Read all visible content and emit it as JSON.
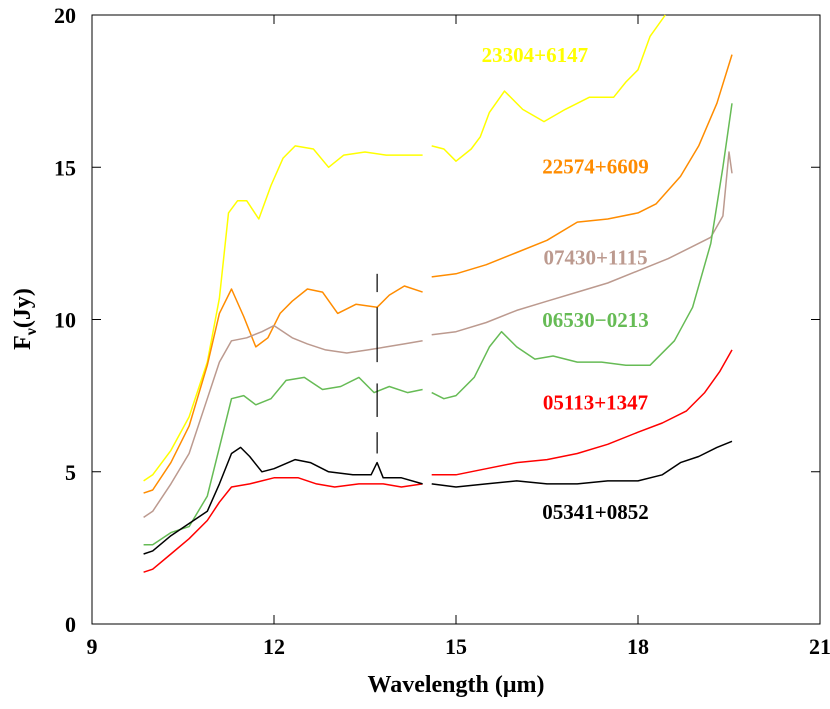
{
  "chart_data": {
    "type": "line",
    "title": "",
    "xlabel": "Wavelength (μm)",
    "ylabel": "Fν (Jy)",
    "xlim": [
      9,
      21
    ],
    "ylim": [
      0,
      20
    ],
    "xticks": [
      9,
      12,
      15,
      18,
      21
    ],
    "yticks": [
      0,
      5,
      10,
      15,
      20
    ],
    "grid": false,
    "gap": [
      14.5,
      14.6
    ],
    "marker_line": {
      "x": 13.7,
      "y_ranges": [
        [
          11.5,
          10.9
        ],
        [
          10.4,
          8.6
        ],
        [
          7.9,
          6.8
        ],
        [
          6.3,
          5.6
        ]
      ]
    },
    "series": [
      {
        "name": "23304+6147",
        "color": "#ffff00",
        "points": [
          [
            9.85,
            4.7
          ],
          [
            10.0,
            4.9
          ],
          [
            10.3,
            5.7
          ],
          [
            10.6,
            6.8
          ],
          [
            10.9,
            8.6
          ],
          [
            11.1,
            10.7
          ],
          [
            11.25,
            13.5
          ],
          [
            11.4,
            13.9
          ],
          [
            11.55,
            13.9
          ],
          [
            11.75,
            13.3
          ],
          [
            11.95,
            14.4
          ],
          [
            12.15,
            15.3
          ],
          [
            12.35,
            15.7
          ],
          [
            12.65,
            15.6
          ],
          [
            12.9,
            15.0
          ],
          [
            13.15,
            15.4
          ],
          [
            13.5,
            15.5
          ],
          [
            13.85,
            15.4
          ],
          [
            14.1,
            15.4
          ],
          [
            14.45,
            15.4
          ],
          null,
          [
            14.6,
            15.7
          ],
          [
            14.8,
            15.6
          ],
          [
            15.0,
            15.2
          ],
          [
            15.25,
            15.6
          ],
          [
            15.4,
            16.0
          ],
          [
            15.55,
            16.8
          ],
          [
            15.8,
            17.5
          ],
          [
            16.1,
            16.9
          ],
          [
            16.45,
            16.5
          ],
          [
            16.8,
            16.9
          ],
          [
            17.2,
            17.3
          ],
          [
            17.6,
            17.3
          ],
          [
            17.8,
            17.8
          ],
          [
            18.0,
            18.2
          ],
          [
            18.2,
            19.3
          ],
          [
            18.45,
            20.0
          ]
        ]
      },
      {
        "name": "22574+6609",
        "color": "#ff8c00",
        "points": [
          [
            9.85,
            4.3
          ],
          [
            10.0,
            4.4
          ],
          [
            10.3,
            5.3
          ],
          [
            10.6,
            6.5
          ],
          [
            10.9,
            8.5
          ],
          [
            11.1,
            10.2
          ],
          [
            11.3,
            11.0
          ],
          [
            11.5,
            10.1
          ],
          [
            11.7,
            9.1
          ],
          [
            11.9,
            9.4
          ],
          [
            12.1,
            10.2
          ],
          [
            12.3,
            10.6
          ],
          [
            12.55,
            11.0
          ],
          [
            12.8,
            10.9
          ],
          [
            13.05,
            10.2
          ],
          [
            13.35,
            10.5
          ],
          [
            13.7,
            10.4
          ],
          [
            13.9,
            10.8
          ],
          [
            14.15,
            11.1
          ],
          [
            14.45,
            10.9
          ],
          null,
          [
            14.6,
            11.4
          ],
          [
            15.0,
            11.5
          ],
          [
            15.5,
            11.8
          ],
          [
            16.0,
            12.2
          ],
          [
            16.5,
            12.6
          ],
          [
            17.0,
            13.2
          ],
          [
            17.5,
            13.3
          ],
          [
            18.0,
            13.5
          ],
          [
            18.3,
            13.8
          ],
          [
            18.7,
            14.7
          ],
          [
            19.0,
            15.7
          ],
          [
            19.3,
            17.1
          ],
          [
            19.55,
            18.7
          ]
        ]
      },
      {
        "name": "07430+1115",
        "color": "#bc9a8f",
        "points": [
          [
            9.85,
            3.5
          ],
          [
            10.0,
            3.7
          ],
          [
            10.3,
            4.6
          ],
          [
            10.6,
            5.6
          ],
          [
            10.9,
            7.4
          ],
          [
            11.1,
            8.6
          ],
          [
            11.3,
            9.3
          ],
          [
            11.55,
            9.4
          ],
          [
            11.8,
            9.6
          ],
          [
            12.0,
            9.8
          ],
          [
            12.3,
            9.4
          ],
          [
            12.55,
            9.2
          ],
          [
            12.85,
            9.0
          ],
          [
            13.2,
            8.9
          ],
          [
            13.55,
            9.0
          ],
          [
            13.85,
            9.1
          ],
          [
            14.15,
            9.2
          ],
          [
            14.45,
            9.3
          ],
          null,
          [
            14.6,
            9.5
          ],
          [
            15.0,
            9.6
          ],
          [
            15.5,
            9.9
          ],
          [
            16.0,
            10.3
          ],
          [
            16.5,
            10.6
          ],
          [
            17.0,
            10.9
          ],
          [
            17.5,
            11.2
          ],
          [
            18.0,
            11.6
          ],
          [
            18.5,
            12.0
          ],
          [
            18.9,
            12.4
          ],
          [
            19.2,
            12.7
          ],
          [
            19.4,
            13.4
          ],
          [
            19.5,
            15.5
          ],
          [
            19.55,
            14.8
          ]
        ]
      },
      {
        "name": "06530-0213",
        "color": "#66bb55",
        "points": [
          [
            9.85,
            2.6
          ],
          [
            10.0,
            2.6
          ],
          [
            10.3,
            3.0
          ],
          [
            10.6,
            3.2
          ],
          [
            10.9,
            4.2
          ],
          [
            11.1,
            5.8
          ],
          [
            11.3,
            7.4
          ],
          [
            11.5,
            7.5
          ],
          [
            11.7,
            7.2
          ],
          [
            11.95,
            7.4
          ],
          [
            12.2,
            8.0
          ],
          [
            12.5,
            8.1
          ],
          [
            12.8,
            7.7
          ],
          [
            13.1,
            7.8
          ],
          [
            13.4,
            8.1
          ],
          [
            13.65,
            7.6
          ],
          [
            13.9,
            7.8
          ],
          [
            14.2,
            7.6
          ],
          [
            14.45,
            7.7
          ],
          null,
          [
            14.6,
            7.6
          ],
          [
            14.8,
            7.4
          ],
          [
            15.0,
            7.5
          ],
          [
            15.3,
            8.1
          ],
          [
            15.55,
            9.1
          ],
          [
            15.75,
            9.6
          ],
          [
            16.0,
            9.1
          ],
          [
            16.3,
            8.7
          ],
          [
            16.6,
            8.8
          ],
          [
            17.0,
            8.6
          ],
          [
            17.4,
            8.6
          ],
          [
            17.8,
            8.5
          ],
          [
            18.2,
            8.5
          ],
          [
            18.6,
            9.3
          ],
          [
            18.9,
            10.4
          ],
          [
            19.2,
            12.5
          ],
          [
            19.4,
            15.0
          ],
          [
            19.55,
            17.1
          ]
        ]
      },
      {
        "name": "05113+1347",
        "color": "#ff0000",
        "points": [
          [
            9.85,
            1.7
          ],
          [
            10.0,
            1.8
          ],
          [
            10.3,
            2.3
          ],
          [
            10.6,
            2.8
          ],
          [
            10.9,
            3.4
          ],
          [
            11.1,
            4.0
          ],
          [
            11.3,
            4.5
          ],
          [
            11.6,
            4.6
          ],
          [
            12.0,
            4.8
          ],
          [
            12.4,
            4.8
          ],
          [
            12.7,
            4.6
          ],
          [
            13.0,
            4.5
          ],
          [
            13.4,
            4.6
          ],
          [
            13.8,
            4.6
          ],
          [
            14.1,
            4.5
          ],
          [
            14.45,
            4.6
          ],
          null,
          [
            14.6,
            4.9
          ],
          [
            15.0,
            4.9
          ],
          [
            15.5,
            5.1
          ],
          [
            16.0,
            5.3
          ],
          [
            16.5,
            5.4
          ],
          [
            17.0,
            5.6
          ],
          [
            17.5,
            5.9
          ],
          [
            18.0,
            6.3
          ],
          [
            18.4,
            6.6
          ],
          [
            18.8,
            7.0
          ],
          [
            19.1,
            7.6
          ],
          [
            19.35,
            8.3
          ],
          [
            19.55,
            9.0
          ]
        ]
      },
      {
        "name": "05341+0852",
        "color": "#000000",
        "points": [
          [
            9.85,
            2.3
          ],
          [
            10.0,
            2.4
          ],
          [
            10.3,
            2.9
          ],
          [
            10.6,
            3.3
          ],
          [
            10.9,
            3.7
          ],
          [
            11.1,
            4.6
          ],
          [
            11.3,
            5.6
          ],
          [
            11.45,
            5.8
          ],
          [
            11.6,
            5.5
          ],
          [
            11.8,
            5.0
          ],
          [
            12.0,
            5.1
          ],
          [
            12.35,
            5.4
          ],
          [
            12.6,
            5.3
          ],
          [
            12.9,
            5.0
          ],
          [
            13.3,
            4.9
          ],
          [
            13.6,
            4.9
          ],
          [
            13.7,
            5.3
          ],
          [
            13.8,
            4.8
          ],
          [
            14.1,
            4.8
          ],
          [
            14.45,
            4.6
          ],
          null,
          [
            14.6,
            4.6
          ],
          [
            15.0,
            4.5
          ],
          [
            15.5,
            4.6
          ],
          [
            16.0,
            4.7
          ],
          [
            16.5,
            4.6
          ],
          [
            17.0,
            4.6
          ],
          [
            17.5,
            4.7
          ],
          [
            18.0,
            4.7
          ],
          [
            18.4,
            4.9
          ],
          [
            18.7,
            5.3
          ],
          [
            19.0,
            5.5
          ],
          [
            19.3,
            5.8
          ],
          [
            19.55,
            6.0
          ]
        ]
      }
    ],
    "labels": [
      {
        "text": "23304+6147",
        "color": "#ffff00",
        "x": 16.3,
        "y": 18.45
      },
      {
        "text": "22574+6609",
        "color": "#ff8c00",
        "x": 17.3,
        "y": 14.8
      },
      {
        "text": "07430+1115",
        "color": "#bc9a8f",
        "x": 17.3,
        "y": 11.8
      },
      {
        "text": "06530-0213",
        "color": "#66bb55",
        "x": 17.3,
        "y": 9.75
      },
      {
        "text": "05113+1347",
        "color": "#ff0000",
        "x": 17.3,
        "y": 7.05
      },
      {
        "text": "05341+0852",
        "color": "#000000",
        "x": 17.3,
        "y": 3.45
      }
    ]
  }
}
